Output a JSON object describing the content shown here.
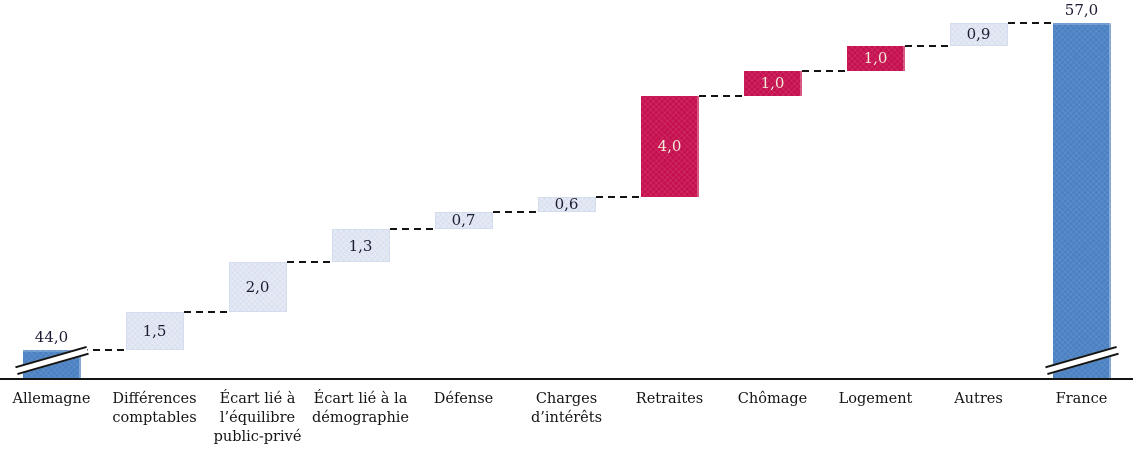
{
  "palette": {
    "total_bar": "#4b81c3",
    "delta_bar": "#e4e9f4",
    "emphasis_bar": "#c6104f",
    "value_text_dark": "#1b1b33",
    "value_text_light": "#f3ebda",
    "connector": "#141414",
    "axis": "#141414",
    "background": "#ffffff"
  },
  "chart_data": {
    "type": "bar",
    "subtype": "waterfall",
    "title": "",
    "xlabel": "",
    "ylabel": "",
    "grid": false,
    "legend": false,
    "axis_break_on_totals": true,
    "value_axis_visible_range": [
      44,
      57
    ],
    "decimal_separator": ",",
    "categories": [
      "Allemagne",
      "Différences comptables",
      "Écart lié à l’équilibre public-privé",
      "Écart lié à la démographie",
      "Défense",
      "Charges d’intérêts",
      "Retraites",
      "Chômage",
      "Logement",
      "Autres",
      "France"
    ],
    "steps": [
      {
        "category": "Allemagne",
        "label_lines": "Allemagne",
        "value": 44.0,
        "display": "44,0",
        "kind": "total",
        "color_role": "total_bar",
        "axis_break": true
      },
      {
        "category": "Différences comptables",
        "label_lines": "Différences\ncomptables",
        "value": 1.5,
        "display": "1,5",
        "kind": "delta",
        "color_role": "delta_bar"
      },
      {
        "category": "Écart lié à l’équilibre public-privé",
        "label_lines": "Écart lié à\nl’équilibre\npublic-privé",
        "value": 2.0,
        "display": "2,0",
        "kind": "delta",
        "color_role": "delta_bar"
      },
      {
        "category": "Écart lié à la démographie",
        "label_lines": "Écart lié à la\ndémographie",
        "value": 1.3,
        "display": "1,3",
        "kind": "delta",
        "color_role": "delta_bar"
      },
      {
        "category": "Défense",
        "label_lines": "Défense",
        "value": 0.7,
        "display": "0,7",
        "kind": "delta",
        "color_role": "delta_bar"
      },
      {
        "category": "Charges d’intérêts",
        "label_lines": "Charges\nd’intérêts",
        "value": 0.6,
        "display": "0,6",
        "kind": "delta",
        "color_role": "delta_bar"
      },
      {
        "category": "Retraites",
        "label_lines": "Retraites",
        "value": 4.0,
        "display": "4,0",
        "kind": "delta",
        "color_role": "emphasis_bar"
      },
      {
        "category": "Chômage",
        "label_lines": "Chômage",
        "value": 1.0,
        "display": "1,0",
        "kind": "delta",
        "color_role": "emphasis_bar"
      },
      {
        "category": "Logement",
        "label_lines": "Logement",
        "value": 1.0,
        "display": "1,0",
        "kind": "delta",
        "color_role": "emphasis_bar"
      },
      {
        "category": "Autres",
        "label_lines": "Autres",
        "value": 0.9,
        "display": "0,9",
        "kind": "delta",
        "color_role": "delta_bar"
      },
      {
        "category": "France",
        "label_lines": "France",
        "value": 57.0,
        "display": "57,0",
        "kind": "total",
        "color_role": "total_bar",
        "axis_break": true
      }
    ]
  }
}
